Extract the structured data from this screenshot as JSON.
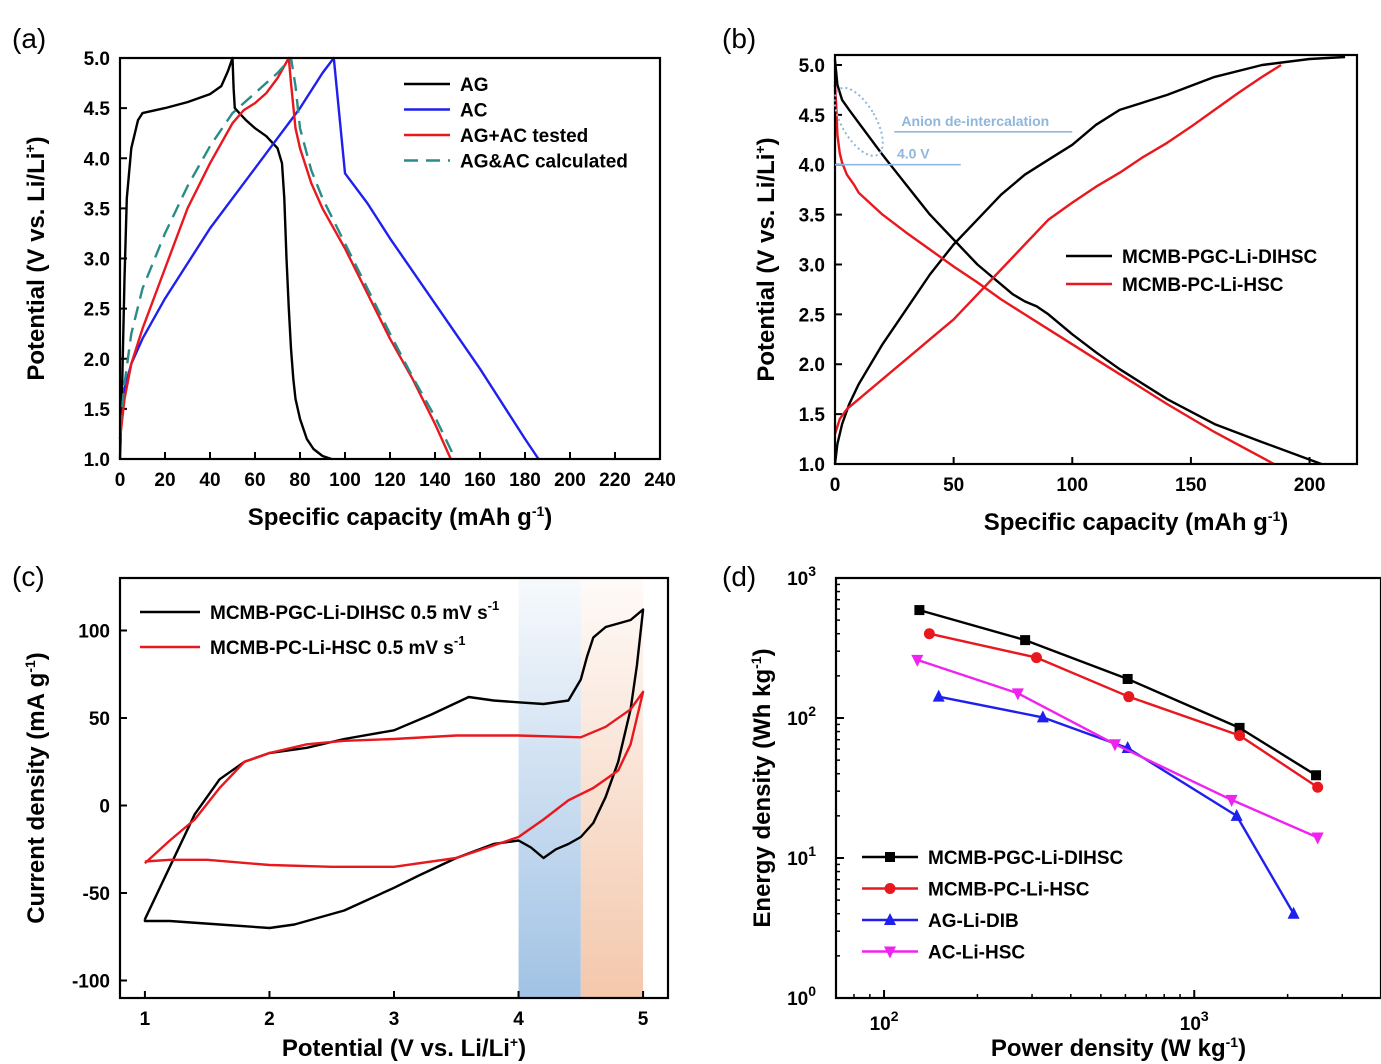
{
  "chart_data": [
    {
      "panel": "(a)",
      "type": "line",
      "xlabel": "Specific capacity (mAh g",
      "xlabel_sup": "-1",
      "xlabel_tail": ")",
      "ylabel": "Potential (V vs. Li/Li",
      "ylabel_sup": "+",
      "ylabel_tail": ")",
      "xlim": [
        0,
        240
      ],
      "ylim": [
        1.0,
        5.0
      ],
      "xticks": [
        "0",
        "20",
        "40",
        "60",
        "80",
        "100",
        "120",
        "140",
        "160",
        "180",
        "200",
        "220",
        "240"
      ],
      "yticks": [
        "1.0",
        "1.5",
        "2.0",
        "2.5",
        "3.0",
        "3.5",
        "4.0",
        "4.5",
        "5.0"
      ],
      "legend_position": "top-right",
      "series": [
        {
          "name": "AG",
          "color": "#000000",
          "dash": false,
          "x": [
            0,
            1,
            2,
            3,
            5,
            8,
            10,
            20,
            30,
            40,
            45,
            48,
            50,
            50.5,
            51,
            53,
            56,
            60,
            65,
            70,
            72,
            73,
            74,
            75,
            76,
            77,
            78,
            80,
            83,
            86,
            90,
            94
          ],
          "y": [
            1.0,
            1.8,
            2.8,
            3.6,
            4.1,
            4.38,
            4.45,
            4.5,
            4.56,
            4.64,
            4.72,
            4.87,
            5.0,
            4.7,
            4.5,
            4.45,
            4.38,
            4.3,
            4.22,
            4.1,
            3.95,
            3.6,
            3.0,
            2.5,
            2.1,
            1.8,
            1.6,
            1.4,
            1.2,
            1.1,
            1.03,
            1.0
          ]
        },
        {
          "name": "AC",
          "color": "#1f1fef",
          "dash": false,
          "x": [
            0,
            2,
            5,
            10,
            20,
            30,
            40,
            50,
            60,
            70,
            80,
            90,
            95,
            100,
            110,
            120,
            140,
            160,
            180,
            186
          ],
          "y": [
            1.2,
            1.7,
            1.95,
            2.2,
            2.6,
            2.95,
            3.3,
            3.6,
            3.9,
            4.2,
            4.5,
            4.85,
            5.0,
            3.85,
            3.55,
            3.2,
            2.55,
            1.9,
            1.2,
            1.0
          ]
        },
        {
          "name": "AG+AC tested",
          "color": "#e8181e",
          "dash": false,
          "x": [
            0,
            2,
            5,
            10,
            20,
            30,
            40,
            50,
            55,
            60,
            65,
            70,
            75,
            76,
            78,
            80,
            85,
            90,
            100,
            110,
            120,
            130,
            140,
            147
          ],
          "y": [
            1.2,
            1.6,
            1.95,
            2.3,
            2.9,
            3.5,
            3.95,
            4.35,
            4.48,
            4.55,
            4.65,
            4.8,
            5.0,
            4.75,
            4.3,
            4.1,
            3.75,
            3.5,
            3.1,
            2.65,
            2.2,
            1.8,
            1.35,
            1.0
          ]
        },
        {
          "name": "AG&AC calculated",
          "color": "#2a8c86",
          "dash": true,
          "x": [
            0,
            2,
            5,
            10,
            20,
            30,
            40,
            50,
            60,
            70,
            76,
            78,
            80,
            85,
            90,
            100,
            110,
            120,
            130,
            140,
            149
          ],
          "y": [
            1.3,
            1.75,
            2.25,
            2.7,
            3.25,
            3.72,
            4.12,
            4.45,
            4.65,
            4.85,
            5.0,
            4.72,
            4.3,
            3.88,
            3.6,
            3.15,
            2.7,
            2.25,
            1.82,
            1.42,
            1.0
          ]
        }
      ]
    },
    {
      "panel": "(b)",
      "type": "line",
      "xlabel": "Specific capacity (mAh g",
      "xlabel_sup": "-1",
      "xlabel_tail": ")",
      "ylabel": "Potential (V vs. Li/Li",
      "ylabel_sup": "+",
      "ylabel_tail": ")",
      "xlim": [
        0,
        220
      ],
      "ylim": [
        1.0,
        5.1
      ],
      "xticks": [
        "0",
        "50",
        "100",
        "150",
        "200"
      ],
      "xtick_values": [
        0,
        50,
        100,
        150,
        200
      ],
      "yticks": [
        "1.0",
        "1.5",
        "2.0",
        "2.5",
        "3.0",
        "3.5",
        "4.0",
        "4.5",
        "5.0"
      ],
      "legend_position": "center-right",
      "annotations": [
        "Anion de-intercalation",
        "4.0 V"
      ],
      "annotation_color": "#8fb6dc",
      "series": [
        {
          "name": "MCMB-PGC-Li-DIHSC",
          "color": "#000000",
          "dash": false,
          "charge_x": [
            0,
            1,
            3,
            6,
            10,
            20,
            30,
            40,
            50,
            60,
            70,
            80,
            90,
            100,
            110,
            120,
            140,
            160,
            180,
            200,
            215
          ],
          "charge_y": [
            1.0,
            1.2,
            1.4,
            1.6,
            1.8,
            2.2,
            2.55,
            2.9,
            3.2,
            3.45,
            3.7,
            3.9,
            4.05,
            4.2,
            4.4,
            4.55,
            4.7,
            4.88,
            5.0,
            5.06,
            5.08
          ],
          "discharge_x": [
            0,
            1,
            3,
            6,
            10,
            20,
            30,
            40,
            50,
            60,
            70,
            75,
            80,
            85,
            90,
            100,
            110,
            120,
            140,
            160,
            180,
            205
          ],
          "discharge_y": [
            5.05,
            4.8,
            4.65,
            4.55,
            4.42,
            4.1,
            3.8,
            3.5,
            3.25,
            3.0,
            2.8,
            2.7,
            2.63,
            2.58,
            2.5,
            2.3,
            2.12,
            1.95,
            1.65,
            1.4,
            1.22,
            1.0
          ]
        },
        {
          "name": "MCMB-PC-Li-HSC",
          "color": "#e8181e",
          "dash": false,
          "charge_x": [
            0,
            2,
            5,
            10,
            20,
            30,
            40,
            50,
            60,
            70,
            80,
            90,
            100,
            110,
            120,
            130,
            140,
            150,
            160,
            170,
            180,
            188
          ],
          "charge_y": [
            1.3,
            1.45,
            1.55,
            1.65,
            1.85,
            2.05,
            2.25,
            2.45,
            2.7,
            2.95,
            3.2,
            3.45,
            3.62,
            3.78,
            3.92,
            4.08,
            4.22,
            4.38,
            4.55,
            4.72,
            4.88,
            5.0
          ],
          "discharge_x": [
            0,
            0.5,
            1,
            2,
            3,
            5,
            8,
            10,
            20,
            30,
            40,
            50,
            60,
            70,
            80,
            90,
            100,
            110,
            120,
            140,
            160,
            185
          ],
          "discharge_y": [
            4.8,
            4.6,
            4.3,
            4.12,
            4.02,
            3.9,
            3.8,
            3.72,
            3.5,
            3.32,
            3.15,
            2.98,
            2.82,
            2.65,
            2.5,
            2.35,
            2.2,
            2.05,
            1.9,
            1.6,
            1.32,
            1.0
          ]
        }
      ]
    },
    {
      "panel": "(c)",
      "type": "line",
      "xlabel": "Potential (V vs. Li/Li",
      "xlabel_sup": "+",
      "xlabel_tail": ")",
      "ylabel": "Current density (mA g",
      "ylabel_sup": "-1",
      "ylabel_tail": ")",
      "xlim": [
        0.8,
        5.2
      ],
      "ylim": [
        -110,
        130
      ],
      "xticks": [
        "1",
        "2",
        "3",
        "4",
        "5"
      ],
      "xtick_values": [
        1,
        2,
        3,
        4,
        5
      ],
      "yticks": [
        "-100",
        "-50",
        "0",
        "50",
        "100"
      ],
      "ytick_values": [
        -100,
        -50,
        0,
        50,
        100
      ],
      "legend_position": "top-left",
      "shaded_regions": [
        {
          "x": [
            4.0,
            4.5
          ],
          "color": "#9cbfe3"
        },
        {
          "x": [
            4.5,
            5.0
          ],
          "color": "#f3c5a8"
        }
      ],
      "series": [
        {
          "name": "MCMB-PGC-Li-DIHSC 0.5 mV s",
          "name_sup": "-1",
          "color": "#000000",
          "x": [
            1.0,
            1.2,
            1.4,
            1.6,
            1.8,
            2.0,
            2.3,
            2.6,
            3.0,
            3.3,
            3.6,
            3.8,
            4.0,
            4.2,
            4.4,
            4.5,
            4.55,
            4.6,
            4.7,
            4.8,
            4.9,
            5.0,
            4.95,
            4.9,
            4.8,
            4.7,
            4.6,
            4.5,
            4.4,
            4.3,
            4.2,
            4.1,
            4.0,
            3.8,
            3.5,
            3.2,
            3.0,
            2.6,
            2.2,
            2.0,
            1.6,
            1.2,
            1.0,
            1.0
          ],
          "y": [
            -65,
            -35,
            -5,
            15,
            25,
            30,
            33,
            38,
            43,
            52,
            62,
            60,
            59,
            58,
            60,
            72,
            85,
            96,
            102,
            104,
            106,
            112,
            80,
            55,
            25,
            5,
            -10,
            -18,
            -22,
            -25,
            -30,
            -24,
            -20,
            -22,
            -30,
            -40,
            -47,
            -60,
            -68,
            -70,
            -68,
            -66,
            -66,
            -65
          ]
        },
        {
          "name": "MCMB-PC-Li-HSC 0.5 mV s",
          "name_sup": "-1",
          "color": "#e8181e",
          "x": [
            1.0,
            1.2,
            1.4,
            1.6,
            1.8,
            2.0,
            2.3,
            2.6,
            3.0,
            3.5,
            4.0,
            4.5,
            4.7,
            4.9,
            5.0,
            4.9,
            4.8,
            4.6,
            4.4,
            4.2,
            4.0,
            3.5,
            3.0,
            2.5,
            2.0,
            1.5,
            1.2,
            1.0
          ],
          "y": [
            -33,
            -20,
            -8,
            10,
            25,
            30,
            35,
            37,
            38,
            40,
            40,
            39,
            45,
            55,
            65,
            35,
            20,
            10,
            3,
            -8,
            -18,
            -30,
            -35,
            -35,
            -34,
            -31,
            -31,
            -32
          ]
        }
      ]
    },
    {
      "panel": "(d)",
      "type": "line",
      "xlabel": "Power density (W kg",
      "xlabel_sup": "-1",
      "xlabel_tail": ")",
      "ylabel": "Energy density (Wh kg",
      "ylabel_sup": "-1",
      "ylabel_tail": ")",
      "xscale": "log",
      "yscale": "log",
      "xlim": [
        70,
        4000
      ],
      "ylim": [
        1,
        1000
      ],
      "xticks": [
        {
          "base": "10",
          "exp": "2",
          "value": 100
        },
        {
          "base": "10",
          "exp": "3",
          "value": 1000
        }
      ],
      "yticks": [
        {
          "base": "10",
          "exp": "0",
          "value": 1
        },
        {
          "base": "10",
          "exp": "1",
          "value": 10
        },
        {
          "base": "10",
          "exp": "2",
          "value": 100
        },
        {
          "base": "10",
          "exp": "3",
          "value": 1000
        }
      ],
      "legend_position": "bottom-left",
      "series": [
        {
          "name": "MCMB-PGC-Li-DIHSC",
          "color": "#000000",
          "marker": "square",
          "x": [
            130,
            285,
            610,
            1400,
            2470
          ],
          "y": [
            590,
            360,
            190,
            85,
            39
          ]
        },
        {
          "name": "MCMB-PC-Li-HSC",
          "color": "#e8181e",
          "marker": "circle",
          "x": [
            140,
            310,
            615,
            1400,
            2500
          ],
          "y": [
            400,
            270,
            142,
            75,
            32
          ]
        },
        {
          "name": "AG-Li-DIB",
          "color": "#1f1fef",
          "marker": "triangle-up",
          "x": [
            150,
            325,
            610,
            1370,
            2090
          ],
          "y": [
            142,
            101,
            61,
            20,
            4
          ]
        },
        {
          "name": "AC-Li-HSC",
          "color": "#f022f0",
          "marker": "triangle-down",
          "x": [
            128,
            270,
            555,
            1320,
            2500
          ],
          "y": [
            260,
            150,
            65,
            26,
            14
          ]
        }
      ]
    }
  ]
}
